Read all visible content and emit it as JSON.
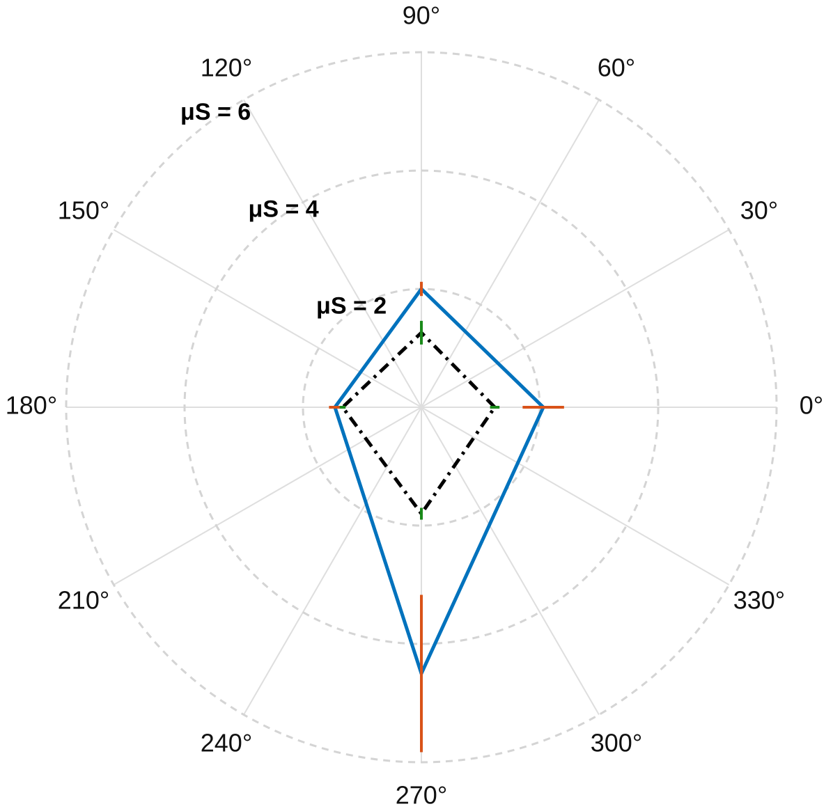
{
  "chart_data": {
    "type": "polar",
    "theta": [
      0,
      90,
      180,
      270
    ],
    "rlim": [
      0,
      6
    ],
    "rticks": [
      {
        "value": 2,
        "label": "μS = 2"
      },
      {
        "value": 4,
        "label": "μS = 4"
      },
      {
        "value": 6,
        "label": "μS = 6"
      }
    ],
    "thetaticks": [
      {
        "value": 0,
        "label": "0°"
      },
      {
        "value": 30,
        "label": "30°"
      },
      {
        "value": 60,
        "label": "60°"
      },
      {
        "value": 90,
        "label": "90°"
      },
      {
        "value": 120,
        "label": "120°"
      },
      {
        "value": 150,
        "label": "150°"
      },
      {
        "value": 180,
        "label": "180°"
      },
      {
        "value": 210,
        "label": "210°"
      },
      {
        "value": 240,
        "label": "240°"
      },
      {
        "value": 270,
        "label": "270°"
      },
      {
        "value": 300,
        "label": "300°"
      },
      {
        "value": 330,
        "label": "330°"
      }
    ],
    "series": [
      {
        "values": [
          2.06,
          2.0,
          1.46,
          4.5
        ],
        "errors": [
          0.35,
          0.12,
          0.1,
          1.33
        ],
        "color": "#0072bd",
        "error_color": "#d95319",
        "dashed": false
      },
      {
        "values": [
          1.24,
          1.26,
          1.33,
          1.8
        ],
        "errors": [
          0.08,
          0.2,
          0.05,
          0.1
        ],
        "color": "#000000",
        "error_color": "#1a8a1a",
        "dashed": true
      }
    ],
    "grid": true
  }
}
